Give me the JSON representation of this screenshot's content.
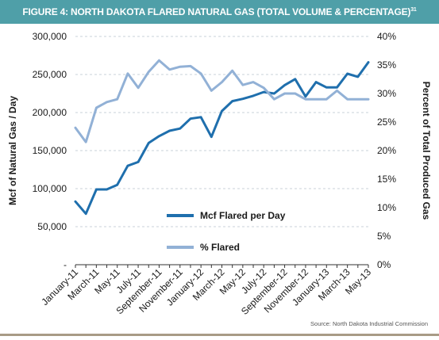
{
  "chart_data": {
    "type": "line",
    "title": "FIGURE 4: NORTH DAKOTA FLARED NATURAL GAS (TOTAL VOLUME & PERCENTAGE)",
    "title_footnote": "31",
    "ylabel": "Mcf of Natural Gas / Day",
    "y2label": "Percent of Total Produced Gas",
    "ylim": [
      0,
      300000
    ],
    "y2lim": [
      0,
      40
    ],
    "yticks": [
      0,
      50000,
      100000,
      150000,
      200000,
      250000,
      300000
    ],
    "yticklabels": [
      "-",
      "50,000",
      "100,000",
      "150,000",
      "200,000",
      "250,000",
      "300,000"
    ],
    "y2ticks": [
      0,
      5,
      10,
      15,
      20,
      25,
      30,
      35,
      40
    ],
    "y2ticklabels": [
      "0%",
      "5%",
      "10%",
      "15%",
      "20%",
      "25%",
      "30%",
      "35%",
      "40%"
    ],
    "x": [
      "Jan-11",
      "Feb-11",
      "Mar-11",
      "Apr-11",
      "May-11",
      "Jun-11",
      "Jul-11",
      "Aug-11",
      "Sep-11",
      "Oct-11",
      "Nov-11",
      "Dec-11",
      "Jan-12",
      "Feb-12",
      "Mar-12",
      "Apr-12",
      "May-12",
      "Jun-12",
      "Jul-12",
      "Aug-12",
      "Sep-12",
      "Oct-12",
      "Nov-12",
      "Dec-12",
      "Jan-13",
      "Feb-13",
      "Mar-13",
      "Apr-13",
      "May-13"
    ],
    "xticklabels": [
      "January-11",
      "March-11",
      "May-11",
      "July-11",
      "September-11",
      "November-11",
      "January-12",
      "March-12",
      "May-12",
      "July-12",
      "September-12",
      "November-12",
      "January-13",
      "March-13",
      "May-13"
    ],
    "grid": "horizontal, dashed",
    "legend_placement": "center",
    "series": [
      {
        "name": "Mcf Flared per Day",
        "axis": "left",
        "color": "#1f6fad",
        "values": [
          83000,
          67000,
          99000,
          99000,
          105000,
          130000,
          135000,
          160000,
          169000,
          176000,
          179000,
          192000,
          194000,
          168000,
          202000,
          215000,
          218000,
          222000,
          227000,
          225000,
          236000,
          244000,
          221000,
          240000,
          233000,
          233000,
          251000,
          247000,
          266000
        ]
      },
      {
        "name": "% Flared",
        "axis": "right",
        "color": "#92b1d6",
        "values": [
          24,
          21.5,
          27.5,
          28.5,
          29,
          33.5,
          31,
          33.8,
          35.8,
          34.2,
          34.7,
          34.8,
          33.5,
          30.5,
          32,
          34,
          31.5,
          32,
          31,
          29,
          30,
          30,
          29,
          29,
          29,
          30.5,
          29,
          29,
          29
        ]
      }
    ],
    "source": "Source: North Dakota Industrial Commission"
  },
  "colors": {
    "title_bar": "#4f9fa8",
    "grid": "#c9d2d9",
    "bottom_rule": "#a89b86"
  }
}
